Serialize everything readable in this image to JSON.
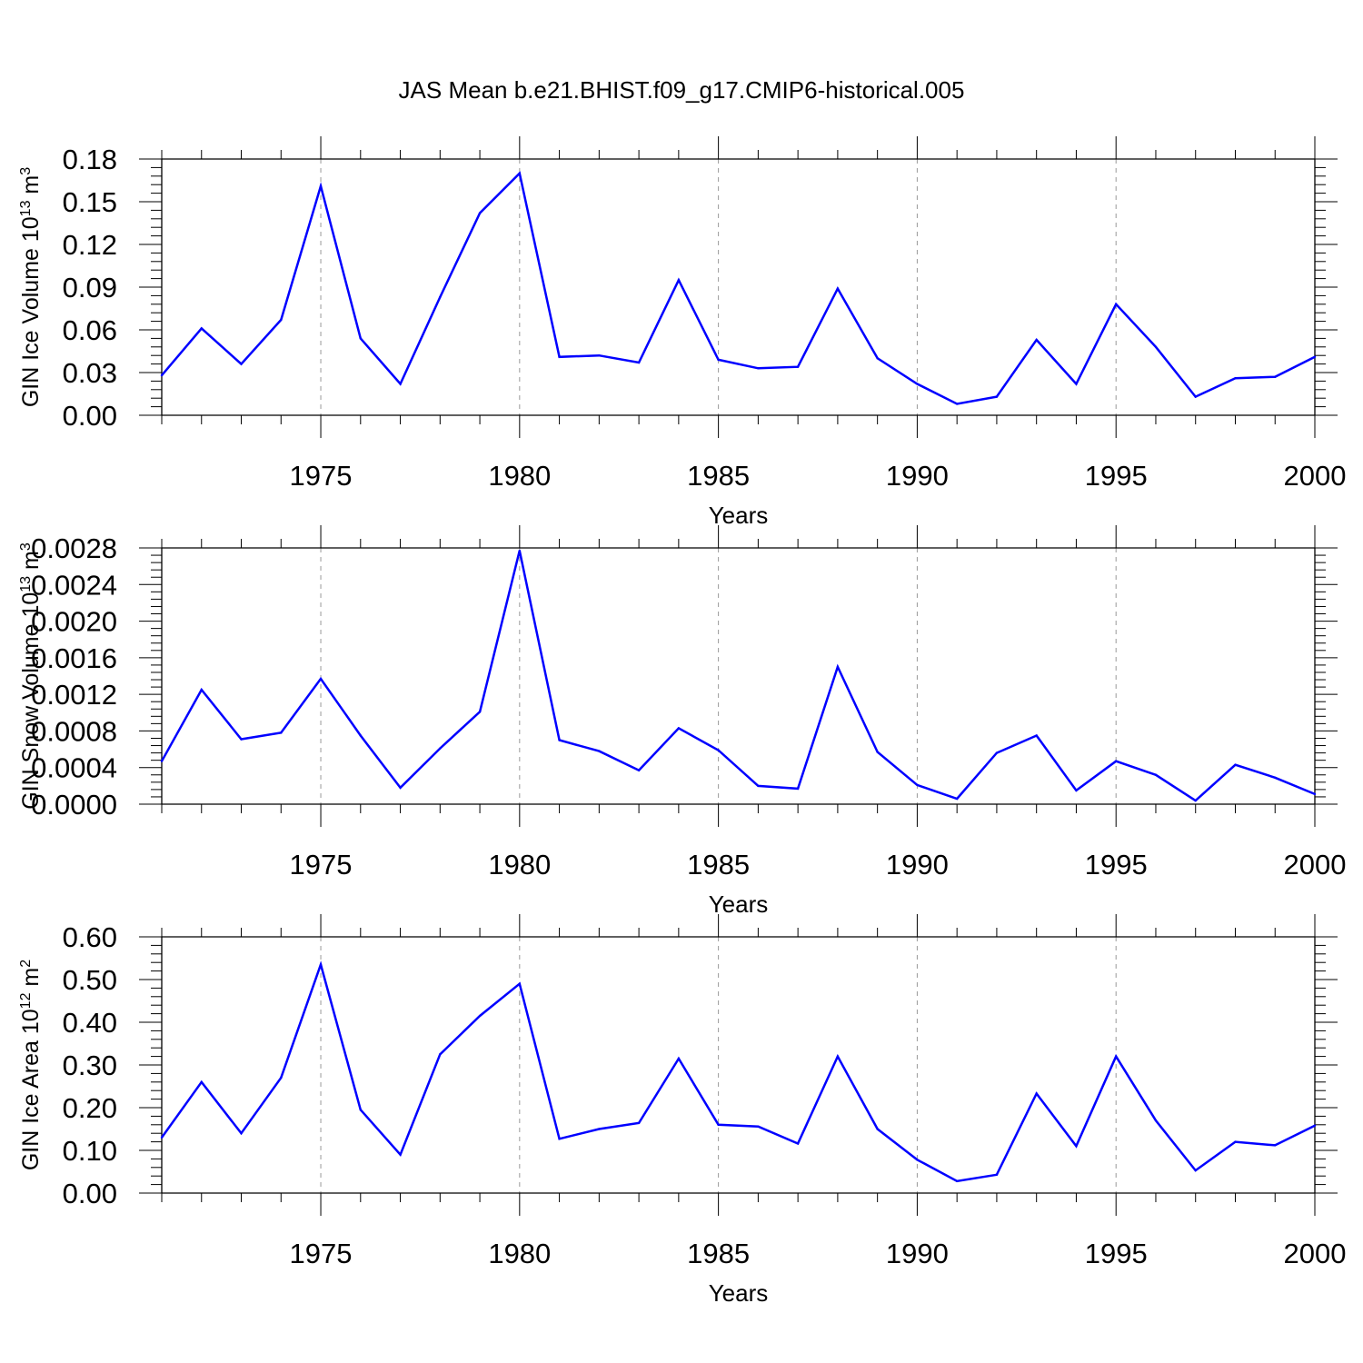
{
  "title": "JAS Mean b.e21.BHIST.f09_g17.CMIP6-historical.005",
  "line_color": "#0000ff",
  "chart_data": [
    {
      "type": "line",
      "xlabel": "Years",
      "ylabel": "GIN Ice Volume 10",
      "ylabel_sup1": "13",
      "ylabel_unit": " m",
      "ylabel_sup2": "3",
      "xlim": [
        1971,
        2000
      ],
      "ylim": [
        0,
        0.18
      ],
      "xticks": [
        1975,
        1980,
        1985,
        1990,
        1995,
        2000
      ],
      "yticks": [
        "0.00",
        "0.03",
        "0.06",
        "0.09",
        "0.12",
        "0.15",
        "0.18"
      ],
      "series": [
        {
          "x": [
            1971,
            1972,
            1973,
            1974,
            1975,
            1976,
            1977,
            1978,
            1979,
            1980,
            1981,
            1982,
            1983,
            1984,
            1985,
            1986,
            1987,
            1988,
            1989,
            1990,
            1991,
            1992,
            1993,
            1994,
            1995,
            1996,
            1997,
            1998,
            1999,
            2000
          ],
          "values": [
            0.028,
            0.061,
            0.036,
            0.067,
            0.161,
            0.054,
            0.022,
            0.083,
            0.142,
            0.17,
            0.041,
            0.042,
            0.037,
            0.095,
            0.039,
            0.033,
            0.034,
            0.089,
            0.04,
            0.022,
            0.008,
            0.013,
            0.053,
            0.022,
            0.078,
            0.048,
            0.013,
            0.026,
            0.027,
            0.041
          ]
        }
      ]
    },
    {
      "type": "line",
      "xlabel": "Years",
      "ylabel": "GIN Snow Volume 10",
      "ylabel_sup1": "13",
      "ylabel_unit": " m",
      "ylabel_sup2": "3",
      "xlim": [
        1971,
        2000
      ],
      "ylim": [
        0,
        0.0028
      ],
      "xticks": [
        1975,
        1980,
        1985,
        1990,
        1995,
        2000
      ],
      "yticks": [
        "0.0000",
        "0.0004",
        "0.0008",
        "0.0012",
        "0.0016",
        "0.0020",
        "0.0024",
        "0.0028"
      ],
      "series": [
        {
          "x": [
            1971,
            1972,
            1973,
            1974,
            1975,
            1976,
            1977,
            1978,
            1979,
            1980,
            1981,
            1982,
            1983,
            1984,
            1985,
            1986,
            1987,
            1988,
            1989,
            1990,
            1991,
            1992,
            1993,
            1994,
            1995,
            1996,
            1997,
            1998,
            1999,
            2000
          ],
          "values": [
            0.00047,
            0.00125,
            0.00071,
            0.00078,
            0.00137,
            0.00075,
            0.00018,
            0.00061,
            0.00101,
            0.00277,
            0.0007,
            0.00058,
            0.00037,
            0.00083,
            0.00059,
            0.0002,
            0.00017,
            0.0015,
            0.00057,
            0.00021,
            6e-05,
            0.00056,
            0.00075,
            0.00015,
            0.00047,
            0.00032,
            4e-05,
            0.00043,
            0.00029,
            0.00011
          ]
        }
      ]
    },
    {
      "type": "line",
      "xlabel": "Years",
      "ylabel": "GIN Ice Area 10",
      "ylabel_sup1": "12",
      "ylabel_unit": " m",
      "ylabel_sup2": "2",
      "xlim": [
        1971,
        2000
      ],
      "ylim": [
        0,
        0.6
      ],
      "xticks": [
        1975,
        1980,
        1985,
        1990,
        1995,
        2000
      ],
      "yticks": [
        "0.00",
        "0.10",
        "0.20",
        "0.30",
        "0.40",
        "0.50",
        "0.60"
      ],
      "series": [
        {
          "x": [
            1971,
            1972,
            1973,
            1974,
            1975,
            1976,
            1977,
            1978,
            1979,
            1980,
            1981,
            1982,
            1983,
            1984,
            1985,
            1986,
            1987,
            1988,
            1989,
            1990,
            1991,
            1992,
            1993,
            1994,
            1995,
            1996,
            1997,
            1998,
            1999,
            2000
          ],
          "values": [
            0.13,
            0.26,
            0.14,
            0.27,
            0.535,
            0.195,
            0.09,
            0.325,
            0.415,
            0.49,
            0.127,
            0.15,
            0.164,
            0.315,
            0.16,
            0.156,
            0.116,
            0.32,
            0.15,
            0.078,
            0.028,
            0.043,
            0.233,
            0.11,
            0.32,
            0.17,
            0.053,
            0.12,
            0.112,
            0.158
          ]
        }
      ]
    }
  ]
}
